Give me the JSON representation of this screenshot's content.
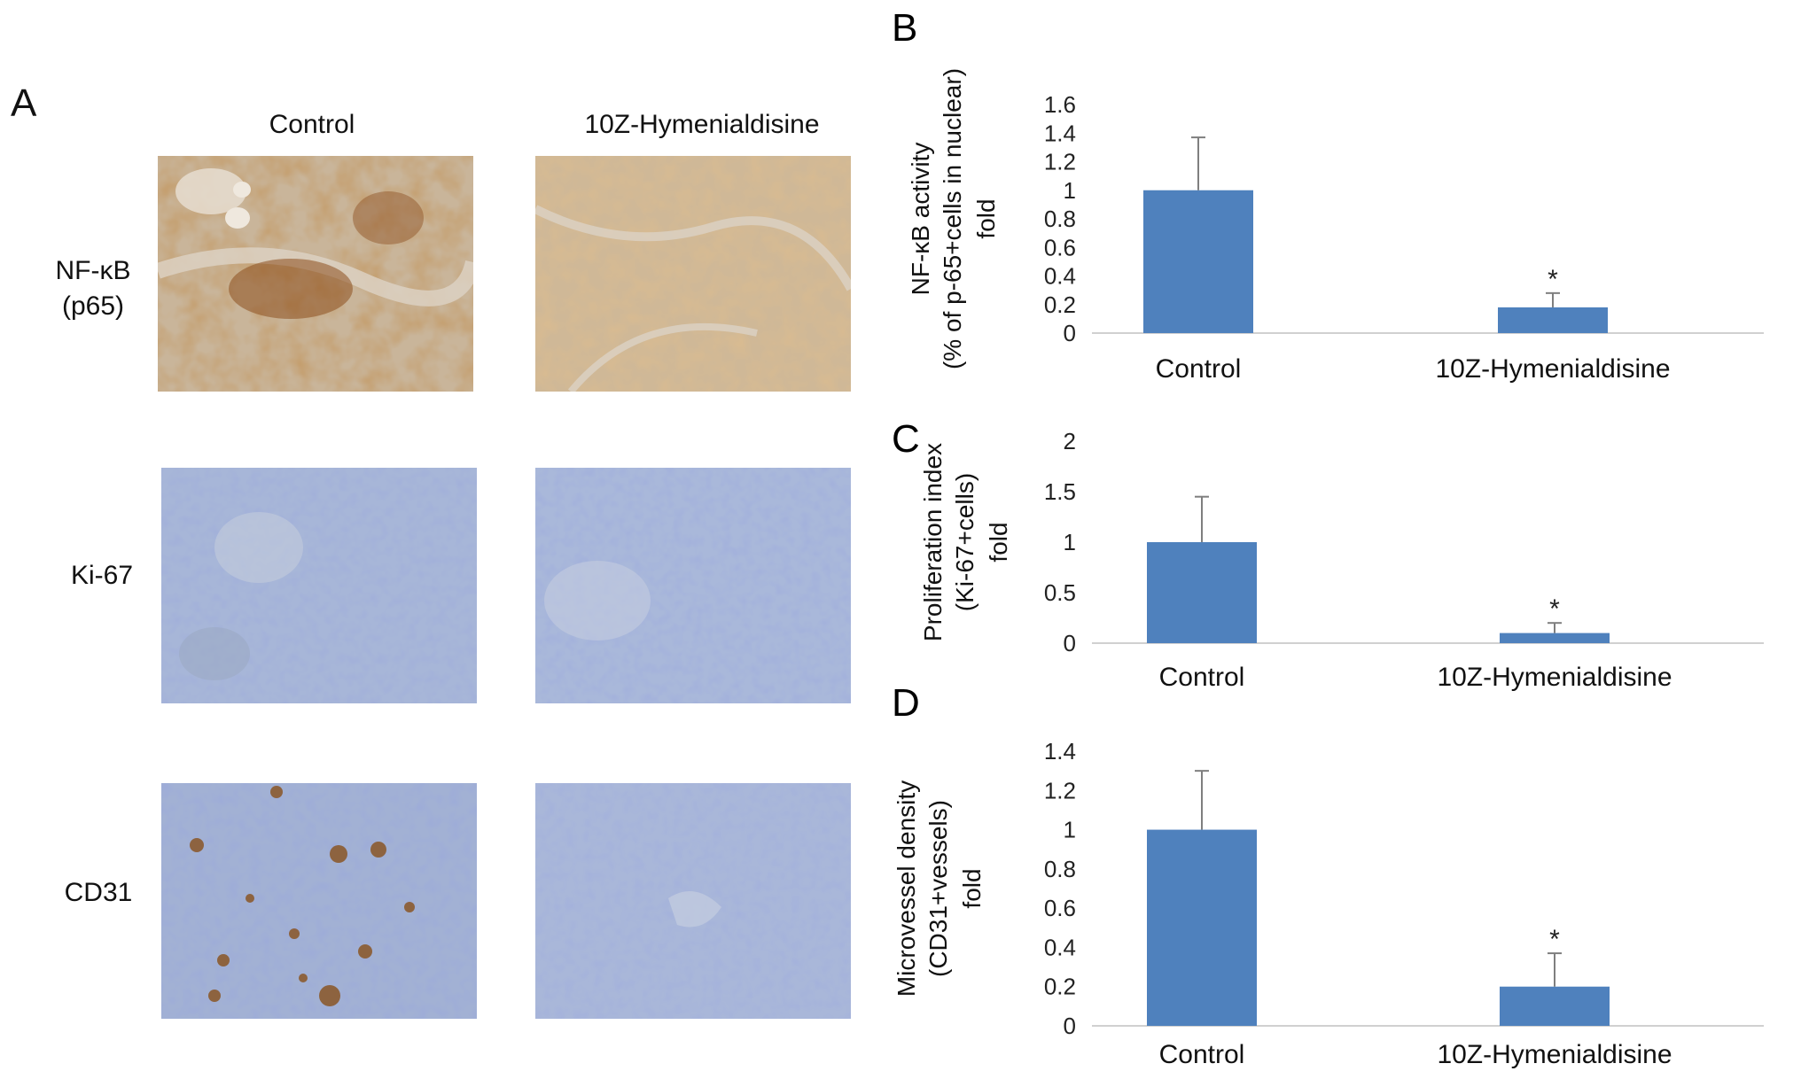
{
  "panel_a": {
    "letter": "A",
    "columns": [
      "Control",
      "10Z-Hymenialdisine"
    ],
    "rows": [
      {
        "label_line1": "NF-κB",
        "label_line2": "(p65)",
        "stain": "brown-heavy / brown-diffuse"
      },
      {
        "label_line1": "Ki-67",
        "label_line2": "",
        "stain": "blue"
      },
      {
        "label_line1": "CD31",
        "label_line2": "",
        "stain": "blue-brown-spots / blue"
      }
    ],
    "colors": {
      "brown": "#a0682e",
      "tan": "#c9a27a",
      "blue": "#8fa3cf",
      "stroma": "#d9d4cb"
    }
  },
  "chart_data": [
    {
      "letter": "B",
      "type": "bar",
      "categories": [
        "Control",
        "10Z-Hymenialdisine"
      ],
      "values": [
        1.0,
        0.18
      ],
      "errors": [
        0.37,
        0.1
      ],
      "significance": [
        "",
        "*"
      ],
      "ylim": [
        0,
        1.6
      ],
      "yticks": [
        "0",
        "0.2",
        "0.4",
        "0.6",
        "0.8",
        "1",
        "1.2",
        "1.4",
        "1.6"
      ],
      "ylabel_lines": [
        "NF-κB activity",
        "(% of p-65+cells in nuclear)",
        "fold"
      ],
      "bar_color": "#4f81bd"
    },
    {
      "letter": "C",
      "type": "bar",
      "categories": [
        "Control",
        "10Z-Hymenialdisine"
      ],
      "values": [
        1.0,
        0.1
      ],
      "errors": [
        0.45,
        0.1
      ],
      "significance": [
        "",
        "*"
      ],
      "ylim": [
        0,
        2
      ],
      "yticks": [
        "0",
        "0.5",
        "1",
        "1.5",
        "2"
      ],
      "ylabel_lines": [
        "Proliferation index",
        "(Ki-67+cells)",
        "fold"
      ],
      "bar_color": "#4f81bd"
    },
    {
      "letter": "D",
      "type": "bar",
      "categories": [
        "Control",
        "10Z-Hymenialdisine"
      ],
      "values": [
        1.0,
        0.2
      ],
      "errors": [
        0.3,
        0.17
      ],
      "significance": [
        "",
        "*"
      ],
      "ylim": [
        0,
        1.4
      ],
      "yticks": [
        "0",
        "0.2",
        "0.4",
        "0.6",
        "0.8",
        "1",
        "1.2",
        "1.4"
      ],
      "ylabel_lines": [
        "Microvessel density",
        "(CD31+vessels)",
        "fold"
      ],
      "bar_color": "#4f81bd"
    }
  ]
}
